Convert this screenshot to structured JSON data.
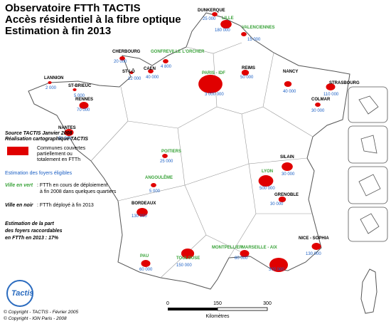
{
  "header": {
    "title_lines": [
      "Observatoire FTTh TACTIS",
      "Accès résidentiel à la fibre optique",
      "Estimation à fin 2013"
    ]
  },
  "cities": [
    {
      "name": "DUNKERQUE",
      "value": "25 000",
      "label_color": "black"
    },
    {
      "name": "LILLE",
      "value": "180 000",
      "label_color": "green"
    },
    {
      "name": "VALENCIENNES",
      "value": "15 000",
      "label_color": "green"
    },
    {
      "name": "CHERBOURG",
      "value": "20 000",
      "label_color": "black"
    },
    {
      "name": "GONFREVILLE L'ORCHER",
      "value": "4 800",
      "label_color": "green"
    },
    {
      "name": "CAEN",
      "value": "40 000",
      "label_color": "black"
    },
    {
      "name": "ST-LÔ",
      "value": "12 000",
      "label_color": "black"
    },
    {
      "name": "LANNION",
      "value": "2 000",
      "label_color": "black"
    },
    {
      "name": "ST-BRIEUC",
      "value": "5 000",
      "label_color": "black"
    },
    {
      "name": "PARIS - IDF",
      "value": "3 000 000",
      "label_color": "green"
    },
    {
      "name": "REIMS",
      "value": "50 000",
      "label_color": "black"
    },
    {
      "name": "NANCY",
      "value": "40 000",
      "label_color": "black"
    },
    {
      "name": "STRASBOURG",
      "value": "110 000",
      "label_color": "black"
    },
    {
      "name": "COLMAR",
      "value": "30 000",
      "label_color": "black"
    },
    {
      "name": "RENNES",
      "value": "70 000",
      "label_color": "black"
    },
    {
      "name": "NANTES",
      "value": "90 000",
      "label_color": "black"
    },
    {
      "name": "POITIERS",
      "value": "25 000",
      "label_color": "green"
    },
    {
      "name": "SILAIN",
      "value": "30 000",
      "label_color": "black"
    },
    {
      "name": "LYON",
      "value": "500 000",
      "label_color": "green"
    },
    {
      "name": "GRENOBLE",
      "value": "30 000",
      "label_color": "black"
    },
    {
      "name": "ANGOULÊME",
      "value": "5 000",
      "label_color": "green"
    },
    {
      "name": "BORDEAUX",
      "value": "130 000",
      "label_color": "black"
    },
    {
      "name": "TOULOUSE",
      "value": "150 000",
      "label_color": "green"
    },
    {
      "name": "PAU",
      "value": "60 000",
      "label_color": "green"
    },
    {
      "name": "MONTPELLIER",
      "value": "80 000",
      "label_color": "green"
    },
    {
      "name": "MARSEILLE - AIX",
      "value": "300 000",
      "label_color": "green"
    },
    {
      "name": "NICE - SOPHIA",
      "value": "130 000",
      "label_color": "black"
    }
  ],
  "legend": {
    "source": "Source TACTIS Janvier 2008",
    "credit": "Réalisation cartographique TACTIS",
    "coverage_lines": [
      "Communes couvertes",
      "partiellement ou",
      "totalement en FTTh"
    ],
    "eligible": "Estimation des foyers éligibles",
    "green_key": "Ville en vert",
    "green_text_lines": [
      ": FTTh en cours de déploiement",
      "à fin 2008 dans quelques quartiers"
    ],
    "black_key": "Ville en noir",
    "black_text": ": FTTh déployé à fin 2013",
    "share_lines": [
      "Estimation de la part",
      "des foyers raccordables",
      "en FTTh en 2013 : 17%"
    ]
  },
  "scale": {
    "ticks": [
      "0",
      "150",
      "300"
    ],
    "unit": "Kilomètres"
  },
  "footer": {
    "logo": "Tactis",
    "copyrights": [
      "© Copyright - TACTIS - Février 2005",
      "© Copyright - IGN Paris - 2008"
    ]
  }
}
